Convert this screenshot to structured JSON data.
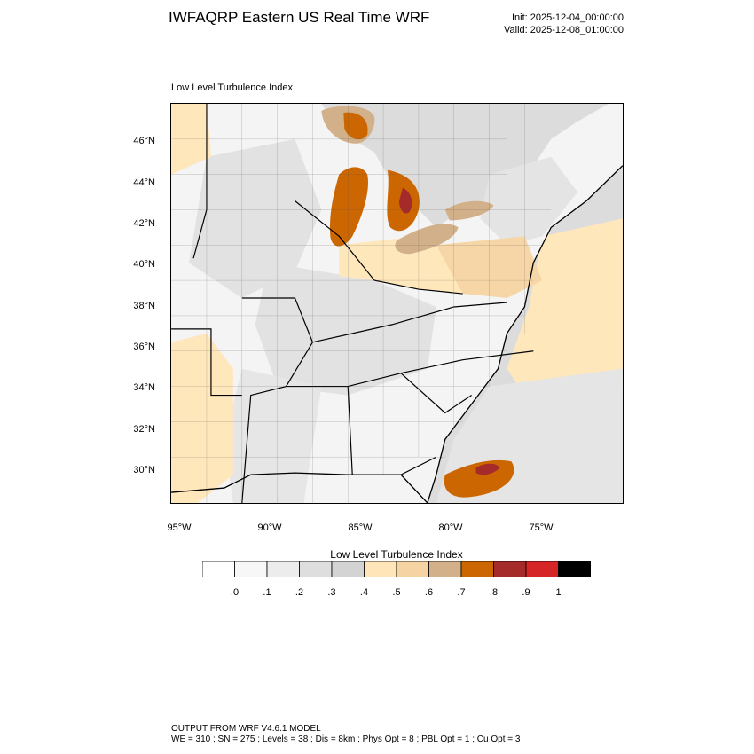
{
  "header": {
    "title": "IWFAQRP Eastern US Real Time WRF",
    "init": "Init: 2025-12-04_00:00:00",
    "valid": "Valid: 2025-12-08_01:00:00"
  },
  "map": {
    "subtitle": "Low Level Turbulence Index",
    "lat_ticks": [
      "46°N",
      "44°N",
      "42°N",
      "40°N",
      "38°N",
      "36°N",
      "34°N",
      "32°N",
      "30°N"
    ],
    "lon_ticks": [
      "95°W",
      "90°W",
      "85°W",
      "80°W",
      "75°W"
    ],
    "colors": {
      "water": "#dcdcdc",
      "land_light": "#f4f4f4",
      "land_mid": "#e2e2e2",
      "tan_light": "#ffe7bc",
      "tan_mid": "#f6d6a6",
      "brown": "#d2b08a",
      "orange": "#cc6600",
      "red": "#a52a2a"
    }
  },
  "colorbar": {
    "title": "Low Level Turbulence Index",
    "colors": [
      "#ffffff",
      "#f7f7f7",
      "#ececec",
      "#dedede",
      "#d3d3d3",
      "#ffe5b8",
      "#f5d3a2",
      "#d2b08a",
      "#cc6600",
      "#a52a2a",
      "#d62526",
      "#000000"
    ],
    "labels": [
      ".0",
      ".1",
      ".2",
      ".3",
      ".4",
      ".5",
      ".6",
      ".7",
      ".8",
      ".9",
      "1"
    ]
  },
  "footer": {
    "line1": "OUTPUT FROM WRF V4.6.1 MODEL",
    "line2": "WE = 310 ; SN = 275 ; Levels = 38 ; Dis = 8km ; Phys Opt = 8 ; PBL Opt = 1 ; Cu Opt = 3"
  }
}
